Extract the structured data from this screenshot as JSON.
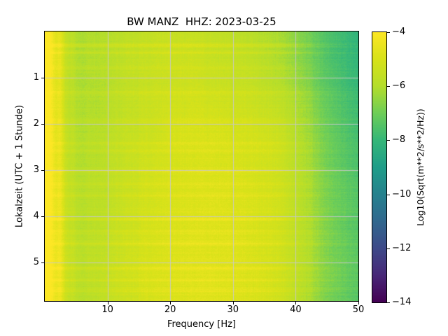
{
  "figure": {
    "title": "BW MANZ  HHZ: 2023-03-25"
  },
  "chart_data": {
    "type": "heatmap",
    "title": "BW MANZ  HHZ: 2023-03-25",
    "xlabel": "Frequency [Hz]",
    "ylabel": "Lokalzeit (UTC + 1 Stunde)",
    "colorbar_label": "Log10(Sqrt(m**2/s**2/Hz))",
    "colormap": "viridis",
    "grid": true,
    "legend_position": "colorbar-right",
    "x_range": [
      0,
      50
    ],
    "y_range": [
      0,
      5.83
    ],
    "value_range": [
      -14,
      -4
    ],
    "x_ticks": [
      10,
      20,
      30,
      40,
      50
    ],
    "y_ticks": [
      1,
      2,
      3,
      4,
      5
    ],
    "colorbar_ticks": [
      {
        "label": "−4",
        "value": -4
      },
      {
        "label": "−6",
        "value": -6
      },
      {
        "label": "−8",
        "value": -8
      },
      {
        "label": "−10",
        "value": -10
      },
      {
        "label": "−12",
        "value": -12
      },
      {
        "label": "−14",
        "value": -14
      }
    ],
    "colormap_stops": [
      [
        0.0,
        [
          68,
          1,
          84
        ]
      ],
      [
        0.1,
        [
          72,
          40,
          120
        ]
      ],
      [
        0.2,
        [
          62,
          74,
          137
        ]
      ],
      [
        0.3,
        [
          49,
          104,
          142
        ]
      ],
      [
        0.4,
        [
          38,
          130,
          142
        ]
      ],
      [
        0.5,
        [
          31,
          158,
          137
        ]
      ],
      [
        0.6,
        [
          53,
          183,
          121
        ]
      ],
      [
        0.7,
        [
          110,
          206,
          88
        ]
      ],
      [
        0.8,
        [
          181,
          222,
          43
        ]
      ],
      [
        0.9,
        [
          216,
          226,
          25
        ]
      ],
      [
        1.0,
        [
          253,
          231,
          37
        ]
      ]
    ],
    "freqs_hz": [
      0,
      2,
      4,
      6,
      8,
      10,
      12,
      14,
      16,
      18,
      20,
      22,
      24,
      26,
      28,
      30,
      32,
      34,
      36,
      38,
      40,
      42,
      44,
      46,
      48,
      50
    ],
    "times_hours": [
      0.0,
      0.53,
      1.06,
      1.59,
      2.12,
      2.65,
      3.18,
      3.71,
      4.24,
      4.77,
      5.3,
      5.83
    ],
    "values_log10": [
      [
        -3.8,
        -4.9,
        -5.9,
        -6.1,
        -6.0,
        -5.9,
        -5.8,
        -5.7,
        -5.6,
        -5.5,
        -5.5,
        -5.5,
        -5.5,
        -5.6,
        -5.6,
        -5.7,
        -5.8,
        -5.9,
        -6.0,
        -6.2,
        -6.5,
        -6.9,
        -7.3,
        -7.6,
        -7.9,
        -8.1
      ],
      [
        -3.8,
        -4.9,
        -5.9,
        -6.1,
        -6.0,
        -5.9,
        -5.8,
        -5.6,
        -5.6,
        -5.5,
        -5.4,
        -5.4,
        -5.4,
        -5.5,
        -5.6,
        -5.6,
        -5.7,
        -5.8,
        -6.0,
        -6.2,
        -6.5,
        -6.9,
        -7.3,
        -7.7,
        -7.9,
        -8.1
      ],
      [
        -3.8,
        -4.9,
        -5.9,
        -6.1,
        -6.0,
        -5.9,
        -5.7,
        -5.6,
        -5.5,
        -5.4,
        -5.4,
        -5.3,
        -5.3,
        -5.4,
        -5.4,
        -5.5,
        -5.5,
        -5.6,
        -5.8,
        -6.0,
        -6.3,
        -6.7,
        -7.2,
        -7.5,
        -7.8,
        -8.0
      ],
      [
        -3.8,
        -4.8,
        -5.9,
        -6.0,
        -6.0,
        -5.8,
        -5.7,
        -5.5,
        -5.4,
        -5.3,
        -5.2,
        -5.2,
        -5.1,
        -5.2,
        -5.2,
        -5.3,
        -5.3,
        -5.4,
        -5.5,
        -5.7,
        -6.0,
        -6.4,
        -6.9,
        -7.3,
        -7.6,
        -7.8
      ],
      [
        -3.8,
        -4.8,
        -5.8,
        -6.0,
        -5.9,
        -5.8,
        -5.6,
        -5.5,
        -5.4,
        -5.3,
        -5.1,
        -5.0,
        -5.0,
        -5.0,
        -5.0,
        -5.1,
        -5.1,
        -5.2,
        -5.3,
        -5.5,
        -5.9,
        -6.3,
        -6.8,
        -7.2,
        -7.5,
        -7.7
      ],
      [
        -3.8,
        -4.8,
        -5.8,
        -6.0,
        -5.9,
        -5.7,
        -5.6,
        -5.4,
        -5.3,
        -5.2,
        -5.1,
        -5.0,
        -5.0,
        -4.9,
        -5.0,
        -5.0,
        -5.1,
        -5.1,
        -5.2,
        -5.4,
        -5.8,
        -6.2,
        -6.7,
        -7.1,
        -7.4,
        -7.6
      ],
      [
        -3.8,
        -4.7,
        -5.8,
        -5.9,
        -5.8,
        -5.7,
        -5.5,
        -5.4,
        -5.2,
        -5.1,
        -5.0,
        -5.0,
        -4.9,
        -4.9,
        -4.9,
        -4.9,
        -5.0,
        -5.1,
        -5.2,
        -5.4,
        -5.7,
        -6.1,
        -6.6,
        -7.0,
        -7.3,
        -7.5
      ],
      [
        -3.8,
        -4.7,
        -5.7,
        -5.9,
        -5.8,
        -5.7,
        -5.5,
        -5.3,
        -5.2,
        -5.1,
        -5.0,
        -4.9,
        -4.9,
        -4.8,
        -4.8,
        -4.9,
        -4.9,
        -5.0,
        -5.1,
        -5.3,
        -5.7,
        -6.1,
        -6.6,
        -7.0,
        -7.2,
        -7.4
      ],
      [
        -3.8,
        -4.7,
        -5.7,
        -5.9,
        -5.8,
        -5.6,
        -5.4,
        -5.3,
        -5.1,
        -5.0,
        -4.9,
        -4.9,
        -4.8,
        -4.8,
        -4.8,
        -4.8,
        -4.9,
        -5.0,
        -5.1,
        -5.3,
        -5.6,
        -6.0,
        -6.5,
        -6.9,
        -7.2,
        -7.4
      ],
      [
        -3.8,
        -4.6,
        -5.6,
        -5.8,
        -5.7,
        -5.6,
        -5.4,
        -5.2,
        -5.1,
        -5.0,
        -4.9,
        -4.8,
        -4.8,
        -4.8,
        -4.8,
        -4.8,
        -4.9,
        -5.0,
        -5.1,
        -5.3,
        -5.6,
        -6.0,
        -6.5,
        -6.9,
        -7.1,
        -7.3
      ],
      [
        -3.8,
        -4.6,
        -5.6,
        -5.8,
        -5.7,
        -5.5,
        -5.3,
        -5.2,
        -5.0,
        -4.9,
        -4.9,
        -4.8,
        -4.8,
        -4.7,
        -4.8,
        -4.8,
        -4.9,
        -4.9,
        -5.1,
        -5.3,
        -5.6,
        -6.0,
        -6.5,
        -6.8,
        -7.1,
        -7.3
      ],
      [
        -3.8,
        -4.7,
        -5.7,
        -5.9,
        -5.8,
        -5.6,
        -5.4,
        -5.3,
        -5.1,
        -5.0,
        -4.9,
        -4.9,
        -4.8,
        -4.8,
        -4.8,
        -4.9,
        -4.9,
        -5.0,
        -5.1,
        -5.3,
        -5.7,
        -6.1,
        -6.6,
        -7.0,
        -7.2,
        -7.4
      ]
    ],
    "streak_rows": [
      {
        "t": 0.3,
        "amp": 0.55
      },
      {
        "t": 0.45,
        "amp": 0.35
      },
      {
        "t": 0.78,
        "amp": 0.3
      },
      {
        "t": 1.32,
        "amp": 0.28
      },
      {
        "t": 1.95,
        "amp": 0.25
      },
      {
        "t": 2.42,
        "amp": 0.3
      },
      {
        "t": 2.58,
        "amp": 0.25
      },
      {
        "t": 3.02,
        "amp": 0.35
      },
      {
        "t": 3.3,
        "amp": 0.25
      },
      {
        "t": 3.55,
        "amp": 0.3
      },
      {
        "t": 4.06,
        "amp": 0.4
      },
      {
        "t": 4.32,
        "amp": 0.3
      },
      {
        "t": 4.58,
        "amp": 0.35
      },
      {
        "t": 5.12,
        "amp": 0.45
      },
      {
        "t": 5.38,
        "amp": 0.3
      },
      {
        "t": 5.62,
        "amp": 0.3
      }
    ],
    "vertical_bands": [
      {
        "f": 0.9,
        "amp": 0.3,
        "w": 0.3
      },
      {
        "f": 2.5,
        "amp": 0.5,
        "w": 0.35
      },
      {
        "f": 4.3,
        "amp": 0.22,
        "w": 0.25
      }
    ]
  }
}
